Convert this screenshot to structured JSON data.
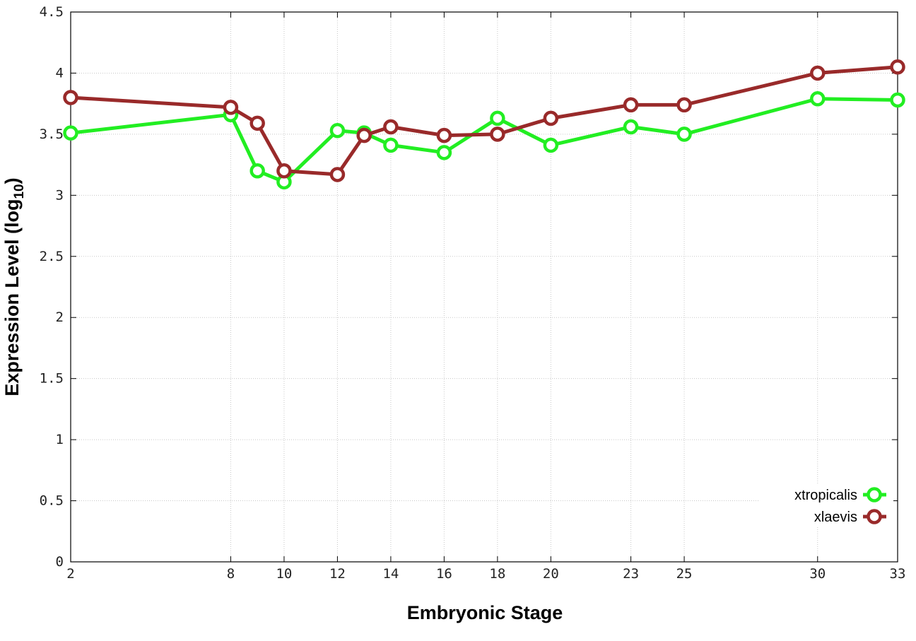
{
  "chart_data": {
    "type": "line",
    "xlabel": "Embryonic Stage",
    "ylabel_main": "Expression Level (log",
    "ylabel_sub": "10",
    "ylabel_close": ")",
    "xlim": [
      2,
      33
    ],
    "ylim": [
      0,
      4.5
    ],
    "x": [
      2,
      8,
      9,
      10,
      12,
      13,
      14,
      16,
      18,
      20,
      23,
      25,
      30,
      33
    ],
    "x_ticks": [
      2,
      8,
      10,
      12,
      14,
      16,
      18,
      20,
      23,
      25,
      30,
      33
    ],
    "y_ticks": [
      "0",
      "0.5",
      "1",
      "1.5",
      "2",
      "2.5",
      "3",
      "3.5",
      "4",
      "4.5"
    ],
    "grid": true,
    "legend_position": "bottom-right",
    "series": [
      {
        "name": "xtropicalis",
        "color": "#22ee22",
        "values": [
          3.51,
          3.66,
          3.2,
          3.11,
          3.53,
          3.51,
          3.41,
          3.35,
          3.63,
          3.41,
          3.56,
          3.5,
          3.79,
          3.78
        ]
      },
      {
        "name": "xlaevis",
        "color": "#992a2a",
        "values": [
          3.8,
          3.72,
          3.59,
          3.2,
          3.17,
          3.49,
          3.56,
          3.49,
          3.5,
          3.63,
          3.74,
          3.74,
          4.0,
          4.05
        ]
      }
    ]
  }
}
